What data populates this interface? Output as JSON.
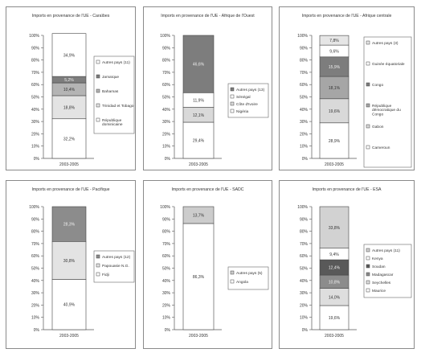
{
  "chart_data": [
    {
      "type": "bar",
      "stacked": true,
      "title": "Imports en provenance de l'UE - Caraïbes",
      "categories": [
        "2003-2005"
      ],
      "ylim": [
        0,
        100
      ],
      "yticks": [
        "0%",
        "10%",
        "20%",
        "30%",
        "40%",
        "50%",
        "60%",
        "70%",
        "80%",
        "90%",
        "100%"
      ],
      "grid": false,
      "legend_position": "right",
      "series": [
        {
          "name": "République dominicaine",
          "values": [
            32.2
          ],
          "label": "32,2%",
          "color": "#ffffff"
        },
        {
          "name": "Trinidad et Tobago",
          "values": [
            18.8
          ],
          "label": "18,8%",
          "color": "#e3e3e3"
        },
        {
          "name": "Bahamas",
          "values": [
            10.4
          ],
          "label": "10,4%",
          "color": "#b4b4b4"
        },
        {
          "name": "Jamaïque",
          "values": [
            5.2
          ],
          "label": "5,2%",
          "color": "#7d7d7d"
        },
        {
          "name": "Autres pays (11)",
          "values": [
            34.9
          ],
          "label": "34,9%",
          "color": "#ffffff"
        }
      ]
    },
    {
      "type": "bar",
      "stacked": true,
      "title": "Imports en provenance de l'UE - Afrique de l'Ouest",
      "categories": [
        "2003-2005"
      ],
      "ylim": [
        0,
        100
      ],
      "yticks": [
        "0%",
        "10%",
        "20%",
        "30%",
        "40%",
        "50%",
        "60%",
        "70%",
        "80%",
        "90%",
        "100%"
      ],
      "grid": false,
      "legend_position": "right",
      "series": [
        {
          "name": "Nigéria",
          "values": [
            29.4
          ],
          "label": "29,4%",
          "color": "#ffffff"
        },
        {
          "name": "Côte d'Ivoire",
          "values": [
            12.1
          ],
          "label": "12,1%",
          "color": "#d9d9d9"
        },
        {
          "name": "Sénégal",
          "values": [
            11.9
          ],
          "label": "11,9%",
          "color": "#ffffff"
        },
        {
          "name": "Autres pays (13)",
          "values": [
            46.6
          ],
          "label": "46,6%",
          "color": "#7d7d7d"
        }
      ]
    },
    {
      "type": "bar",
      "stacked": true,
      "title": "Imports en provenance de l'UE - Afrique centrale",
      "categories": [
        "2003-2005"
      ],
      "ylim": [
        0,
        100
      ],
      "yticks": [
        "0%",
        "10%",
        "20%",
        "30%",
        "40%",
        "50%",
        "60%",
        "70%",
        "80%",
        "90%",
        "100%"
      ],
      "grid": false,
      "legend_position": "right",
      "series": [
        {
          "name": "Cameroun",
          "values": [
            28.9
          ],
          "label": "28,9%",
          "color": "#ffffff"
        },
        {
          "name": "Gabon",
          "values": [
            19.6
          ],
          "label": "19,6%",
          "color": "#d9d9d9"
        },
        {
          "name": "République démocratique du Congo",
          "values": [
            18.1
          ],
          "label": "18,1%",
          "color": "#a6a6a6"
        },
        {
          "name": "Congo",
          "values": [
            15.9
          ],
          "label": "15,9%",
          "color": "#7d7d7d"
        },
        {
          "name": "Guinée équatoriale",
          "values": [
            9.6
          ],
          "label": "9,6%",
          "color": "#ffffff"
        },
        {
          "name": "Autres pays (3)",
          "values": [
            7.8
          ],
          "label": "7,8%",
          "color": "#e6e6e6"
        }
      ]
    },
    {
      "type": "bar",
      "stacked": true,
      "title": "Imports en provenance de l'UE - Pacifique",
      "categories": [
        "2003-2005"
      ],
      "ylim": [
        0,
        100
      ],
      "yticks": [
        "0%",
        "10%",
        "20%",
        "30%",
        "40%",
        "50%",
        "60%",
        "70%",
        "80%",
        "90%",
        "100%"
      ],
      "grid": false,
      "legend_position": "right",
      "series": [
        {
          "name": "Fidji",
          "values": [
            40.9
          ],
          "label": "40,9%",
          "color": "#ffffff"
        },
        {
          "name": "Papouasie N.G.",
          "values": [
            30.8
          ],
          "label": "30,8%",
          "color": "#e3e3e3"
        },
        {
          "name": "Autres pays (12)",
          "values": [
            28.3
          ],
          "label": "28,3%",
          "color": "#8c8c8c"
        }
      ]
    },
    {
      "type": "bar",
      "stacked": true,
      "title": "Imports en provenance de l'UE - SADC",
      "categories": [
        "2003-2005"
      ],
      "ylim": [
        0,
        100
      ],
      "yticks": [
        "0%",
        "10%",
        "20%",
        "30%",
        "40%",
        "50%",
        "60%",
        "70%",
        "80%",
        "90%",
        "100%"
      ],
      "grid": false,
      "legend_position": "right",
      "series": [
        {
          "name": "Angola",
          "values": [
            86.3
          ],
          "label": "86,3%",
          "color": "#ffffff"
        },
        {
          "name": "Autres pays (5)",
          "values": [
            13.7
          ],
          "label": "13,7%",
          "color": "#cccccc"
        }
      ]
    },
    {
      "type": "bar",
      "stacked": true,
      "title": "Imports en provenance de l'UE - ESA",
      "categories": [
        "2003-2005"
      ],
      "ylim": [
        0,
        100
      ],
      "yticks": [
        "0%",
        "10%",
        "20%",
        "30%",
        "40%",
        "50%",
        "60%",
        "70%",
        "80%",
        "90%",
        "100%"
      ],
      "grid": false,
      "legend_position": "right",
      "series": [
        {
          "name": "Maurice",
          "values": [
            19.6
          ],
          "label": "19,6%",
          "color": "#ffffff"
        },
        {
          "name": "Seychelles",
          "values": [
            14.0
          ],
          "label": "14,0%",
          "color": "#dedede"
        },
        {
          "name": "Madagascar",
          "values": [
            10.8
          ],
          "label": "10,8%",
          "color": "#8c8c8c"
        },
        {
          "name": "Soudan",
          "values": [
            12.4
          ],
          "label": "12,4%",
          "color": "#595959"
        },
        {
          "name": "Kenya",
          "values": [
            9.4
          ],
          "label": "9,4%",
          "color": "#ffffff"
        },
        {
          "name": "Autres pays (11)",
          "values": [
            33.8
          ],
          "label": "33,8%",
          "color": "#d2d2d2"
        }
      ]
    }
  ]
}
